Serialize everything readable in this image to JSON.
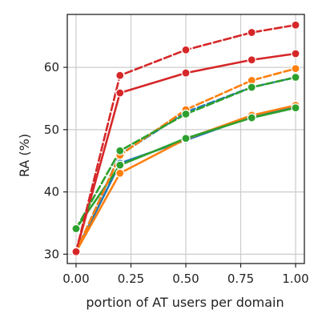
{
  "chart_data": {
    "type": "line",
    "xlabel": "portion of AT users per domain",
    "ylabel": "RA (%)",
    "xlim": [
      -0.04,
      1.04
    ],
    "ylim": [
      28.5,
      68.5
    ],
    "xticks": [
      0.0,
      0.25,
      0.5,
      0.75,
      1.0
    ],
    "xtick_labels": [
      "0.00",
      "0.25",
      "0.50",
      "0.75",
      "1.00"
    ],
    "yticks": [
      30,
      40,
      50,
      60
    ],
    "ytick_labels": [
      "30",
      "40",
      "50",
      "60"
    ],
    "grid": true,
    "legend": "none",
    "series": [
      {
        "color": "#1f77b4",
        "linestyle": "solid",
        "x": [
          0.0,
          0.2,
          0.5,
          0.8,
          1.0
        ],
        "y": [
          30.4,
          44.6,
          48.3,
          52.1,
          53.6
        ]
      },
      {
        "color": "#ff7f0e",
        "linestyle": "solid",
        "x": [
          0.0,
          0.2,
          0.5,
          0.8,
          1.0
        ],
        "y": [
          30.4,
          43.0,
          48.5,
          52.3,
          53.9
        ]
      },
      {
        "color": "#2ca02c",
        "linestyle": "solid",
        "x": [
          0.0,
          0.2,
          0.5,
          0.8,
          1.0
        ],
        "y": [
          34.1,
          44.3,
          48.6,
          51.9,
          53.5
        ]
      },
      {
        "color": "#d62728",
        "linestyle": "solid",
        "x": [
          0.0,
          0.2,
          0.5,
          0.8,
          1.0
        ],
        "y": [
          30.4,
          55.9,
          59.1,
          61.2,
          62.2
        ]
      },
      {
        "color": "#1f77b4",
        "linestyle": "dashed",
        "x": [
          0.0,
          0.2,
          0.5,
          0.8,
          1.0
        ],
        "y": [
          30.4,
          46.0,
          52.8,
          56.8,
          58.4
        ]
      },
      {
        "color": "#ff7f0e",
        "linestyle": "dashed",
        "x": [
          0.0,
          0.2,
          0.5,
          0.8,
          1.0
        ],
        "y": [
          30.4,
          45.9,
          53.2,
          57.9,
          59.8
        ]
      },
      {
        "color": "#2ca02c",
        "linestyle": "dashed",
        "x": [
          0.0,
          0.2,
          0.5,
          0.8,
          1.0
        ],
        "y": [
          34.1,
          46.6,
          52.5,
          56.8,
          58.4
        ]
      },
      {
        "color": "#d62728",
        "linestyle": "dashed",
        "x": [
          0.0,
          0.2,
          0.5,
          0.8,
          1.0
        ],
        "y": [
          30.4,
          58.7,
          62.8,
          65.6,
          66.8
        ]
      }
    ]
  }
}
